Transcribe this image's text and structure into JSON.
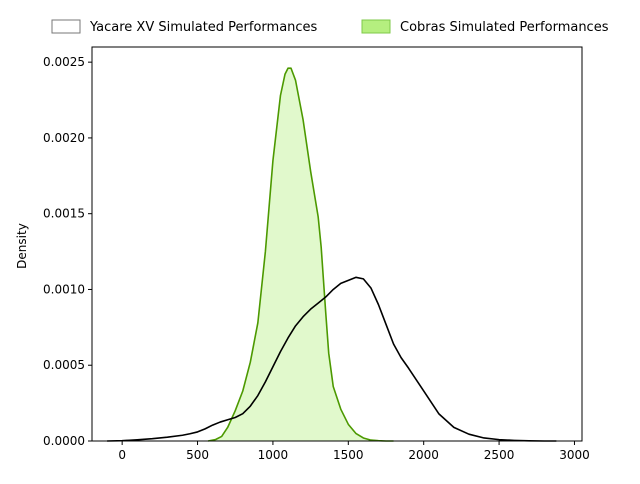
{
  "chart_data": {
    "type": "area",
    "title": "",
    "xlabel": "",
    "ylabel": "Density",
    "xlim": [
      -200,
      3050
    ],
    "ylim": [
      0,
      0.0026
    ],
    "xticks": [
      0,
      500,
      1000,
      1500,
      2000,
      2500,
      3000
    ],
    "xtick_labels": [
      "0",
      "500",
      "1000",
      "1500",
      "2000",
      "2500",
      "3000"
    ],
    "yticks": [
      0,
      0.0005,
      0.001,
      0.0015,
      0.002,
      0.0025
    ],
    "ytick_labels": [
      "0.0000",
      "0.0005",
      "0.0010",
      "0.0015",
      "0.0020",
      "0.0025"
    ],
    "grid": false,
    "legend_position": "top, outside plot",
    "series": [
      {
        "name": "Yacare XV Simulated Performances",
        "style": "line",
        "line_color": "#000000",
        "fill_color": "none",
        "x": [
          -100,
          0,
          100,
          200,
          300,
          400,
          450,
          500,
          550,
          600,
          650,
          700,
          750,
          800,
          850,
          900,
          950,
          1000,
          1050,
          1100,
          1150,
          1200,
          1250,
          1300,
          1350,
          1400,
          1450,
          1500,
          1550,
          1600,
          1650,
          1700,
          1750,
          1800,
          1850,
          1900,
          2000,
          2100,
          2200,
          2300,
          2400,
          2500,
          2600,
          2700,
          2800,
          2880
        ],
        "y": [
          0.0,
          2e-06,
          8e-06,
          1.5e-05,
          2.5e-05,
          3.8e-05,
          4.8e-05,
          6e-05,
          8e-05,
          0.000105,
          0.000125,
          0.00014,
          0.000155,
          0.00018,
          0.00023,
          0.0003,
          0.00039,
          0.00049,
          0.00059,
          0.00068,
          0.00076,
          0.00082,
          0.00087,
          0.00091,
          0.00095,
          0.001,
          0.00104,
          0.00106,
          0.00108,
          0.00107,
          0.00101,
          0.0009,
          0.00077,
          0.00064,
          0.00055,
          0.00048,
          0.00033,
          0.00018,
          9e-05,
          4.5e-05,
          2e-05,
          9e-06,
          4e-06,
          1e-06,
          0.0,
          0.0
        ]
      },
      {
        "name": "Cobras Simulated Performances",
        "style": "filled",
        "line_color": "#4c9900",
        "fill_color": "#b5ef7f",
        "x": [
          570,
          620,
          660,
          700,
          750,
          800,
          850,
          900,
          950,
          1000,
          1050,
          1080,
          1100,
          1120,
          1150,
          1200,
          1250,
          1300,
          1320,
          1350,
          1370,
          1400,
          1450,
          1500,
          1550,
          1600,
          1650,
          1700,
          1750,
          1800
        ],
        "y": [
          0.0,
          1e-05,
          3e-05,
          9e-05,
          0.0002,
          0.00033,
          0.00052,
          0.00078,
          0.00125,
          0.00185,
          0.00228,
          0.00242,
          0.00246,
          0.00246,
          0.00238,
          0.00212,
          0.00178,
          0.00148,
          0.00128,
          0.00085,
          0.00058,
          0.00036,
          0.00021,
          0.00011,
          5e-05,
          2e-05,
          6e-06,
          2e-06,
          0.0,
          0.0
        ]
      }
    ]
  }
}
